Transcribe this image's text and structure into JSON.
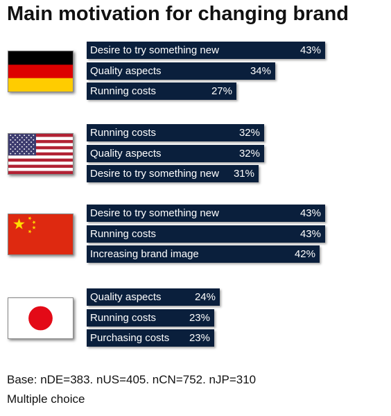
{
  "title": "Main motivation for changing brand",
  "chart_data": {
    "type": "bar",
    "orientation": "horizontal",
    "unit": "%",
    "xlim": [
      0,
      50
    ],
    "groups": [
      {
        "flag": "germany-flag-icon",
        "bars": [
          {
            "label": "Desire to try something new",
            "value": 43
          },
          {
            "label": "Quality aspects",
            "value": 34
          },
          {
            "label": "Running costs",
            "value": 27
          }
        ]
      },
      {
        "flag": "usa-flag-icon",
        "bars": [
          {
            "label": "Running costs",
            "value": 32
          },
          {
            "label": "Quality aspects",
            "value": 32
          },
          {
            "label": "Desire to try something new",
            "value": 31
          }
        ]
      },
      {
        "flag": "china-flag-icon",
        "bars": [
          {
            "label": "Desire to try something new",
            "value": 43
          },
          {
            "label": "Running costs",
            "value": 43
          },
          {
            "label": "Increasing brand image",
            "value": 42
          }
        ]
      },
      {
        "flag": "japan-flag-icon",
        "bars": [
          {
            "label": "Quality aspects",
            "value": 24
          },
          {
            "label": "Running costs",
            "value": 23
          },
          {
            "label": "Purchasing costs",
            "value": 23
          }
        ]
      }
    ]
  },
  "footnotes": {
    "base": "Base: nDE=383. nUS=405. nCN=752. nJP=310",
    "note": "Multiple choice"
  },
  "colors": {
    "bar": "#0a1f3c",
    "bar_text": "#ffffff",
    "germany": [
      "#000000",
      "#dd0000",
      "#ffcc00"
    ],
    "usa_red": "#b22234",
    "usa_blue": "#3c3b6e",
    "china_red": "#de2910",
    "china_star": "#ffde00",
    "japan_red": "#e30a17"
  }
}
